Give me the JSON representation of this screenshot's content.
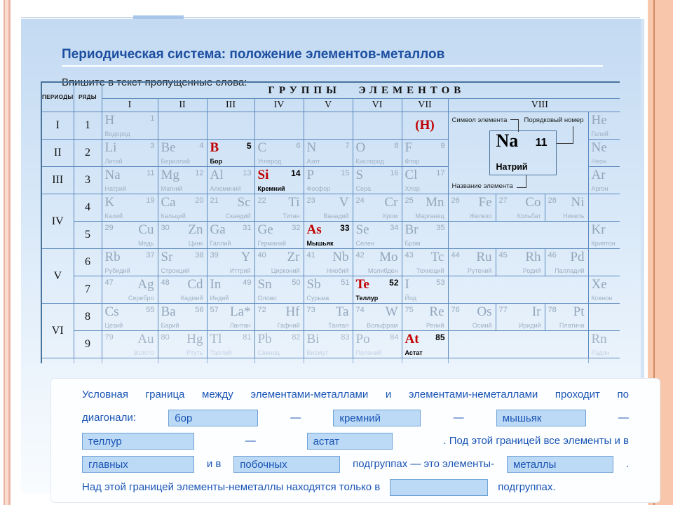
{
  "slide": {
    "title": "Периодическая система: положение элементов-металлов",
    "subtitle": "Впишите в текст пропущенные слова:"
  },
  "colors": {
    "title_blue": "#1d4fa1",
    "highlight_red": "#c00000",
    "exercise_blue": "#1a55b5",
    "input_bg": "#bcd9f5",
    "input_border": "#6fa3d6",
    "table_border": "#5b8abf",
    "element_gray": "#93a6bb",
    "content_bg_top": "#c3daf2",
    "edge_salmon": "#f8c7ab"
  },
  "table": {
    "periods_header": "ПЕРИОДЫ",
    "ryady_header": "РЯДЫ",
    "groups_header": "ГРУППЫ ЭЛЕМЕНТОВ",
    "group_labels": [
      "I",
      "II",
      "III",
      "IV",
      "V",
      "VI",
      "VII",
      "VIII"
    ],
    "legend": {
      "symbol_label": "Символ элемента",
      "number_label": "Порядковый номер",
      "name_label": "Название элемента",
      "symbol": "Na",
      "number": "11",
      "name": "Натрий"
    },
    "rows": [
      {
        "period": {
          "label": "I",
          "rs": 1
        },
        "ryad": "1",
        "cells": [
          {
            "t": "el",
            "s": "H",
            "n": "1",
            "nm": "Водород",
            "a": "l"
          },
          {
            "t": "emp"
          },
          {
            "t": "emp"
          },
          {
            "t": "emp"
          },
          {
            "t": "emp"
          },
          {
            "t": "emp"
          },
          {
            "t": "hs",
            "s": "(H)"
          },
          {
            "t": "lg",
            "cs": 3,
            "rs": 3
          },
          {
            "t": "el",
            "s": "He",
            "n": "2",
            "nm": "Гелий",
            "a": "l"
          }
        ]
      },
      {
        "period": {
          "label": "II",
          "rs": 1
        },
        "ryad": "2",
        "cells": [
          {
            "t": "el",
            "s": "Li",
            "n": "3",
            "nm": "Литий",
            "a": "l"
          },
          {
            "t": "el",
            "s": "Be",
            "n": "4",
            "nm": "Бериллий",
            "a": "l"
          },
          {
            "t": "el",
            "s": "B",
            "n": "5",
            "nm": "Бор",
            "a": "l",
            "hl": true
          },
          {
            "t": "el",
            "s": "C",
            "n": "6",
            "nm": "Углерод",
            "a": "l"
          },
          {
            "t": "el",
            "s": "N",
            "n": "7",
            "nm": "Азот",
            "a": "l"
          },
          {
            "t": "el",
            "s": "O",
            "n": "8",
            "nm": "Кислород",
            "a": "l"
          },
          {
            "t": "el",
            "s": "F",
            "n": "9",
            "nm": "Фтор",
            "a": "l"
          },
          {
            "t": "el",
            "s": "Ne",
            "n": "10",
            "nm": "Неон",
            "a": "l"
          }
        ]
      },
      {
        "period": {
          "label": "III",
          "rs": 1
        },
        "ryad": "3",
        "cells": [
          {
            "t": "el",
            "s": "Na",
            "n": "11",
            "nm": "Натрий",
            "a": "l"
          },
          {
            "t": "el",
            "s": "Mg",
            "n": "12",
            "nm": "Магний",
            "a": "l"
          },
          {
            "t": "el",
            "s": "Al",
            "n": "13",
            "nm": "Алюминий",
            "a": "l"
          },
          {
            "t": "el",
            "s": "Si",
            "n": "14",
            "nm": "Кремний",
            "a": "l",
            "hl": true
          },
          {
            "t": "el",
            "s": "P",
            "n": "15",
            "nm": "Фосфор",
            "a": "l"
          },
          {
            "t": "el",
            "s": "S",
            "n": "16",
            "nm": "Сера",
            "a": "l"
          },
          {
            "t": "el",
            "s": "Cl",
            "n": "17",
            "nm": "Хлор",
            "a": "l"
          },
          {
            "t": "el",
            "s": "Ar",
            "n": "18",
            "nm": "Аргон",
            "a": "l"
          }
        ]
      },
      {
        "period": {
          "label": "IV",
          "rs": 2
        },
        "ryad": "4",
        "cells": [
          {
            "t": "el",
            "s": "K",
            "n": "19",
            "nm": "Калий",
            "a": "l"
          },
          {
            "t": "el",
            "s": "Ca",
            "n": "20",
            "nm": "Кальций",
            "a": "l"
          },
          {
            "t": "el",
            "s": "Sc",
            "n": "21",
            "nm": "Скандий",
            "a": "r"
          },
          {
            "t": "el",
            "s": "Ti",
            "n": "22",
            "nm": "Титан",
            "a": "r"
          },
          {
            "t": "el",
            "s": "V",
            "n": "23",
            "nm": "Ванадий",
            "a": "r"
          },
          {
            "t": "el",
            "s": "Cr",
            "n": "24",
            "nm": "Хром",
            "a": "r"
          },
          {
            "t": "el",
            "s": "Mn",
            "n": "25",
            "nm": "Марганец",
            "a": "r"
          },
          {
            "t": "el",
            "s": "Fe",
            "n": "26",
            "nm": "Железо",
            "a": "r"
          },
          {
            "t": "el",
            "s": "Co",
            "n": "27",
            "nm": "Кольбат",
            "a": "r"
          },
          {
            "t": "el",
            "s": "Ni",
            "n": "28",
            "nm": "Никель",
            "a": "r"
          },
          {
            "t": "emp"
          }
        ]
      },
      {
        "period": null,
        "ryad": "5",
        "cells": [
          {
            "t": "el",
            "s": "Cu",
            "n": "29",
            "nm": "Медь",
            "a": "r"
          },
          {
            "t": "el",
            "s": "Zn",
            "n": "30",
            "nm": "Цинк",
            "a": "r"
          },
          {
            "t": "el",
            "s": "Ga",
            "n": "31",
            "nm": "Галлий",
            "a": "l"
          },
          {
            "t": "el",
            "s": "Ge",
            "n": "32",
            "nm": "Германий",
            "a": "l"
          },
          {
            "t": "el",
            "s": "As",
            "n": "33",
            "nm": "Мышьяк",
            "a": "l",
            "hl": true
          },
          {
            "t": "el",
            "s": "Se",
            "n": "34",
            "nm": "Селен",
            "a": "l"
          },
          {
            "t": "el",
            "s": "Br",
            "n": "35",
            "nm": "Бром",
            "a": "l"
          },
          {
            "t": "emp",
            "cs": 3
          },
          {
            "t": "el",
            "s": "Kr",
            "n": "36",
            "nm": "Криптон",
            "a": "l"
          }
        ]
      },
      {
        "period": {
          "label": "V",
          "rs": 2
        },
        "ryad": "6",
        "cells": [
          {
            "t": "el",
            "s": "Rb",
            "n": "37",
            "nm": "Рубидий",
            "a": "l"
          },
          {
            "t": "el",
            "s": "Sr",
            "n": "38",
            "nm": "Стронций",
            "a": "l"
          },
          {
            "t": "el",
            "s": "Y",
            "n": "39",
            "nm": "Иттрий",
            "a": "r"
          },
          {
            "t": "el",
            "s": "Zr",
            "n": "40",
            "nm": "Цирконий",
            "a": "r"
          },
          {
            "t": "el",
            "s": "Nb",
            "n": "41",
            "nm": "Ниобий",
            "a": "r"
          },
          {
            "t": "el",
            "s": "Mo",
            "n": "42",
            "nm": "Молибден",
            "a": "r"
          },
          {
            "t": "el",
            "s": "Tc",
            "n": "43",
            "nm": "Технеций",
            "a": "r"
          },
          {
            "t": "el",
            "s": "Ru",
            "n": "44",
            "nm": "Рутений",
            "a": "r"
          },
          {
            "t": "el",
            "s": "Rh",
            "n": "45",
            "nm": "Родий",
            "a": "r"
          },
          {
            "t": "el",
            "s": "Pd",
            "n": "46",
            "nm": "Палладий",
            "a": "r"
          },
          {
            "t": "emp"
          }
        ]
      },
      {
        "period": null,
        "ryad": "7",
        "cells": [
          {
            "t": "el",
            "s": "Ag",
            "n": "47",
            "nm": "Серебро",
            "a": "r"
          },
          {
            "t": "el",
            "s": "Cd",
            "n": "48",
            "nm": "Кадмий",
            "a": "r"
          },
          {
            "t": "el",
            "s": "In",
            "n": "49",
            "nm": "Индий",
            "a": "l"
          },
          {
            "t": "el",
            "s": "Sn",
            "n": "50",
            "nm": "Олово",
            "a": "l"
          },
          {
            "t": "el",
            "s": "Sb",
            "n": "51",
            "nm": "Сурьма",
            "a": "l"
          },
          {
            "t": "el",
            "s": "Te",
            "n": "52",
            "nm": "Теллур",
            "a": "l",
            "hl": true
          },
          {
            "t": "el",
            "s": "I",
            "n": "53",
            "nm": "Йод",
            "a": "l"
          },
          {
            "t": "emp",
            "cs": 3
          },
          {
            "t": "el",
            "s": "Xe",
            "n": "54",
            "nm": "Ксенон",
            "a": "l"
          }
        ]
      },
      {
        "period": {
          "label": "VI",
          "rs": 2
        },
        "ryad": "8",
        "cells": [
          {
            "t": "el",
            "s": "Cs",
            "n": "55",
            "nm": "Цезий",
            "a": "l"
          },
          {
            "t": "el",
            "s": "Ba",
            "n": "56",
            "nm": "Барий",
            "a": "l"
          },
          {
            "t": "el",
            "s": "La*",
            "n": "57",
            "nm": "Лантан",
            "a": "r"
          },
          {
            "t": "el",
            "s": "Hf",
            "n": "72",
            "nm": "Гафний",
            "a": "r"
          },
          {
            "t": "el",
            "s": "Ta",
            "n": "73",
            "nm": "Тантал",
            "a": "r"
          },
          {
            "t": "el",
            "s": "W",
            "n": "74",
            "nm": "Вольфрам",
            "a": "r"
          },
          {
            "t": "el",
            "s": "Re",
            "n": "75",
            "nm": "Рений",
            "a": "r"
          },
          {
            "t": "el",
            "s": "Os",
            "n": "76",
            "nm": "Осмий",
            "a": "r"
          },
          {
            "t": "el",
            "s": "Ir",
            "n": "77",
            "nm": "Иридий",
            "a": "r"
          },
          {
            "t": "el",
            "s": "Pt",
            "n": "78",
            "nm": "Платина",
            "a": "r"
          },
          {
            "t": "emp"
          }
        ]
      },
      {
        "period": null,
        "ryad": "9",
        "cells": [
          {
            "t": "el",
            "s": "Au",
            "n": "79",
            "nm": "Золото",
            "a": "r",
            "fd": true
          },
          {
            "t": "el",
            "s": "Hg",
            "n": "80",
            "nm": "Ртуть",
            "a": "r",
            "fd": true
          },
          {
            "t": "el",
            "s": "Tl",
            "n": "81",
            "nm": "Таллий",
            "a": "l",
            "fd": true
          },
          {
            "t": "el",
            "s": "Pb",
            "n": "82",
            "nm": "Свинец",
            "a": "l",
            "fd": true
          },
          {
            "t": "el",
            "s": "Bi",
            "n": "83",
            "nm": "Висмут",
            "a": "l",
            "fd": true
          },
          {
            "t": "el",
            "s": "Po",
            "n": "84",
            "nm": "Полоний",
            "a": "l",
            "fd": true
          },
          {
            "t": "el",
            "s": "At",
            "n": "85",
            "nm": "Астат",
            "a": "l",
            "hl": true
          },
          {
            "t": "emp",
            "cs": 3
          },
          {
            "t": "el",
            "s": "Rn",
            "n": "86",
            "nm": "Радон",
            "a": "l",
            "fd": true
          }
        ]
      },
      {
        "period": {
          "label": "",
          "rs": 1
        },
        "ryad": "",
        "faded": true,
        "cells": [
          {
            "t": "emp"
          },
          {
            "t": "emp"
          },
          {
            "t": "emp"
          },
          {
            "t": "emp"
          },
          {
            "t": "emp"
          },
          {
            "t": "emp"
          },
          {
            "t": "emp"
          },
          {
            "t": "emp",
            "cs": 3
          },
          {
            "t": "emp"
          }
        ]
      }
    ]
  },
  "exercise": {
    "sentence1_line1": "Условная граница между элементами-металлами и элементами-неметаллами проходит по",
    "line2_label": "диагонали:",
    "dash": "—",
    "sentence2_cont": ". Под этой границей все элементы и в",
    "and_in": "и в",
    "subgroups_text": "подгруппах — это элементы-",
    "period_dot": ".",
    "sentence3_start": "Над этой границей элементы-неметаллы находятся только в",
    "sentence3_end": "подгруппах.",
    "blanks": {
      "b1": "бор",
      "b2": "кремний",
      "b3": "мышьяк",
      "b4": "теллур",
      "b5": "астат",
      "b6": "главных",
      "b7": "побочных",
      "b8": "металлы",
      "b9": ""
    }
  }
}
